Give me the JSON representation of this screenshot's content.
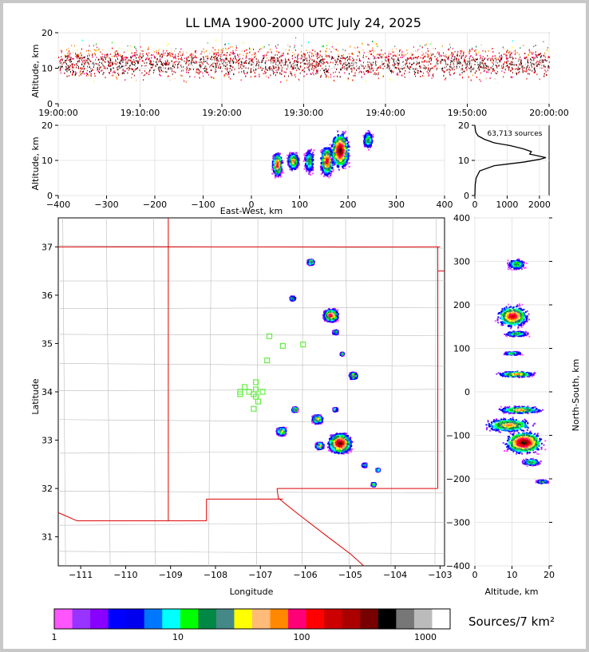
{
  "chart_data": [
    {
      "type": "scatter",
      "panel": "time-height",
      "title": "LL LMA 1900-2000 UTC July 24, 2025",
      "ylabel": "Altitude, km",
      "ylim": [
        0,
        20
      ],
      "yticks": [
        0,
        10,
        20
      ],
      "xticks": [
        "19:00:00",
        "19:10:00",
        "19:20:00",
        "19:30:00",
        "19:40:00",
        "19:50:00",
        "20:00:00"
      ],
      "density_profile": [
        {
          "altitude_km": 2,
          "level": 0.15
        },
        {
          "altitude_km": 5,
          "level": 0.45
        },
        {
          "altitude_km": 8,
          "level": 0.8
        },
        {
          "altitude_km": 11,
          "level": 1.0
        },
        {
          "altitude_km": 14,
          "level": 0.8
        },
        {
          "altitude_km": 17,
          "level": 0.45
        },
        {
          "altitude_km": 19.5,
          "level": 0.2
        }
      ]
    },
    {
      "type": "scatter",
      "panel": "east-west-height",
      "xlabel": "East-West, km",
      "ylabel": "Altitude, km",
      "xlim": [
        -400,
        400
      ],
      "ylim": [
        0,
        20
      ],
      "xticks": [
        -400,
        -300,
        -200,
        -100,
        0,
        100,
        200,
        300,
        400
      ],
      "yticks": [
        0,
        10,
        20
      ],
      "clusters": [
        {
          "x": 52,
          "alt": 9,
          "dx": 12,
          "dalt": 4,
          "peak": 3
        },
        {
          "x": 85,
          "alt": 10,
          "dx": 14,
          "dalt": 3,
          "peak": 2
        },
        {
          "x": 118,
          "alt": 10,
          "dx": 12,
          "dalt": 4,
          "peak": 1
        },
        {
          "x": 155,
          "alt": 10,
          "dx": 16,
          "dalt": 5,
          "peak": 3
        },
        {
          "x": 182,
          "alt": 13,
          "dx": 22,
          "dalt": 6,
          "peak": 4
        },
        {
          "x": 240,
          "alt": 16,
          "dx": 12,
          "dalt": 3,
          "peak": 1
        }
      ]
    },
    {
      "type": "line",
      "panel": "altitude-histogram",
      "annotation": "63,713 sources",
      "xlim": [
        0,
        2300
      ],
      "ylim": [
        0,
        20
      ],
      "xticks": [
        0,
        1000,
        2000
      ],
      "yticks": [
        0,
        10,
        20
      ],
      "points": [
        [
          0,
          0
        ],
        [
          10,
          3
        ],
        [
          40,
          5
        ],
        [
          150,
          7
        ],
        [
          600,
          8.5
        ],
        [
          1500,
          9.5
        ],
        [
          2000,
          10.3
        ],
        [
          2200,
          10.8
        ],
        [
          1950,
          11.3
        ],
        [
          1700,
          11.8
        ],
        [
          1750,
          12.5
        ],
        [
          1500,
          13.3
        ],
        [
          1100,
          14.2
        ],
        [
          600,
          15
        ],
        [
          300,
          16
        ],
        [
          100,
          17
        ],
        [
          30,
          18
        ],
        [
          10,
          19
        ],
        [
          0,
          20
        ]
      ]
    },
    {
      "type": "scatter",
      "panel": "plan-view",
      "xlabel": "Longitude",
      "ylabel": "Latitude",
      "xlim": [
        -111.5,
        -102.9
      ],
      "ylim": [
        30.4,
        37.6
      ],
      "xticks": [
        -111,
        -110,
        -109,
        -108,
        -107,
        -106,
        -105,
        -104,
        -103
      ],
      "yticks": [
        31,
        32,
        33,
        34,
        35,
        36,
        37
      ],
      "clusters": [
        {
          "lon": -105.9,
          "lat": 36.7,
          "r": 0.08,
          "peak": 2
        },
        {
          "lon": -106.3,
          "lat": 35.95,
          "r": 0.07,
          "peak": 1
        },
        {
          "lon": -105.45,
          "lat": 35.6,
          "r": 0.18,
          "peak": 3
        },
        {
          "lon": -105.35,
          "lat": 35.25,
          "r": 0.07,
          "peak": 1
        },
        {
          "lon": -105.2,
          "lat": 34.8,
          "r": 0.05,
          "peak": 1
        },
        {
          "lon": -104.95,
          "lat": 34.35,
          "r": 0.1,
          "peak": 2
        },
        {
          "lon": -106.25,
          "lat": 33.65,
          "r": 0.07,
          "peak": 2
        },
        {
          "lon": -105.75,
          "lat": 33.45,
          "r": 0.13,
          "peak": 2
        },
        {
          "lon": -105.35,
          "lat": 33.65,
          "r": 0.06,
          "peak": 1
        },
        {
          "lon": -106.55,
          "lat": 33.2,
          "r": 0.12,
          "peak": 2
        },
        {
          "lon": -105.25,
          "lat": 32.95,
          "r": 0.28,
          "peak": 4
        },
        {
          "lon": -105.7,
          "lat": 32.9,
          "r": 0.1,
          "peak": 2
        },
        {
          "lon": -104.7,
          "lat": 32.5,
          "r": 0.06,
          "peak": 1
        },
        {
          "lon": -104.4,
          "lat": 32.4,
          "r": 0.05,
          "peak": 1
        },
        {
          "lon": -104.5,
          "lat": 32.1,
          "r": 0.06,
          "peak": 1
        }
      ],
      "stations": [
        {
          "lon": -106.8,
          "lat": 35.15
        },
        {
          "lon": -106.5,
          "lat": 34.95
        },
        {
          "lon": -106.05,
          "lat": 34.98
        },
        {
          "lon": -106.85,
          "lat": 34.65
        },
        {
          "lon": -107.1,
          "lat": 34.2
        },
        {
          "lon": -107.35,
          "lat": 34.1
        },
        {
          "lon": -107.1,
          "lat": 34.05
        },
        {
          "lon": -107.45,
          "lat": 34.0
        },
        {
          "lon": -107.25,
          "lat": 34.0
        },
        {
          "lon": -107.15,
          "lat": 33.95
        },
        {
          "lon": -107.45,
          "lat": 33.95
        },
        {
          "lon": -106.95,
          "lat": 34.0
        },
        {
          "lon": -107.1,
          "lat": 33.9
        },
        {
          "lon": -107.05,
          "lat": 33.8
        },
        {
          "lon": -107.15,
          "lat": 33.65
        }
      ],
      "station_color": "#66ee44",
      "state_border_color": "#dd0000",
      "county_line_color": "#bbbbbb"
    },
    {
      "type": "scatter",
      "panel": "altitude-north-south",
      "xlabel": "Altitude, km",
      "ylabel": "North-South, km",
      "xlim": [
        0,
        20
      ],
      "ylim": [
        -400,
        400
      ],
      "xticks": [
        0,
        10,
        20
      ],
      "yticks": [
        -400,
        -300,
        -200,
        -100,
        0,
        100,
        200,
        300,
        400
      ],
      "clusters": [
        {
          "alt": 11,
          "y": 295,
          "dalt": 3,
          "dy": 15,
          "peak": 1
        },
        {
          "alt": 10,
          "y": 175,
          "dalt": 5,
          "dy": 30,
          "peak": 3
        },
        {
          "alt": 11,
          "y": 135,
          "dalt": 4,
          "dy": 8,
          "peak": 1
        },
        {
          "alt": 10,
          "y": 90,
          "dalt": 3,
          "dy": 5,
          "peak": 1
        },
        {
          "alt": 11,
          "y": 42,
          "dalt": 6,
          "dy": 8,
          "peak": 2
        },
        {
          "alt": 12,
          "y": -40,
          "dalt": 7,
          "dy": 10,
          "peak": 2
        },
        {
          "alt": 9,
          "y": -75,
          "dalt": 8,
          "dy": 20,
          "peak": 2
        },
        {
          "alt": 13,
          "y": -115,
          "dalt": 6,
          "dy": 30,
          "peak": 4
        },
        {
          "alt": 15,
          "y": -160,
          "dalt": 3,
          "dy": 10,
          "peak": 1
        },
        {
          "alt": 18,
          "y": -205,
          "dalt": 2,
          "dy": 5,
          "peak": 1
        }
      ]
    },
    {
      "type": "colorbar",
      "panel": "colorbar",
      "label": "Sources/7 km²",
      "ticks": [
        {
          "value": 1,
          "label": "1"
        },
        {
          "value": 10,
          "label": "10"
        },
        {
          "value": 100,
          "label": "100"
        },
        {
          "value": 1000,
          "label": "1000"
        }
      ],
      "colors": [
        "#ff55ff",
        "#9933ff",
        "#8800ff",
        "#0000ff",
        "#0000ee",
        "#0077ff",
        "#00ffff",
        "#00ff00",
        "#008844",
        "#448888",
        "#ffff00",
        "#ffbb77",
        "#ff8800",
        "#ff0077",
        "#ff0000",
        "#cc0000",
        "#aa0000",
        "#770000",
        "#000000",
        "#777777",
        "#bbbbbb",
        "#ffffff"
      ]
    }
  ]
}
